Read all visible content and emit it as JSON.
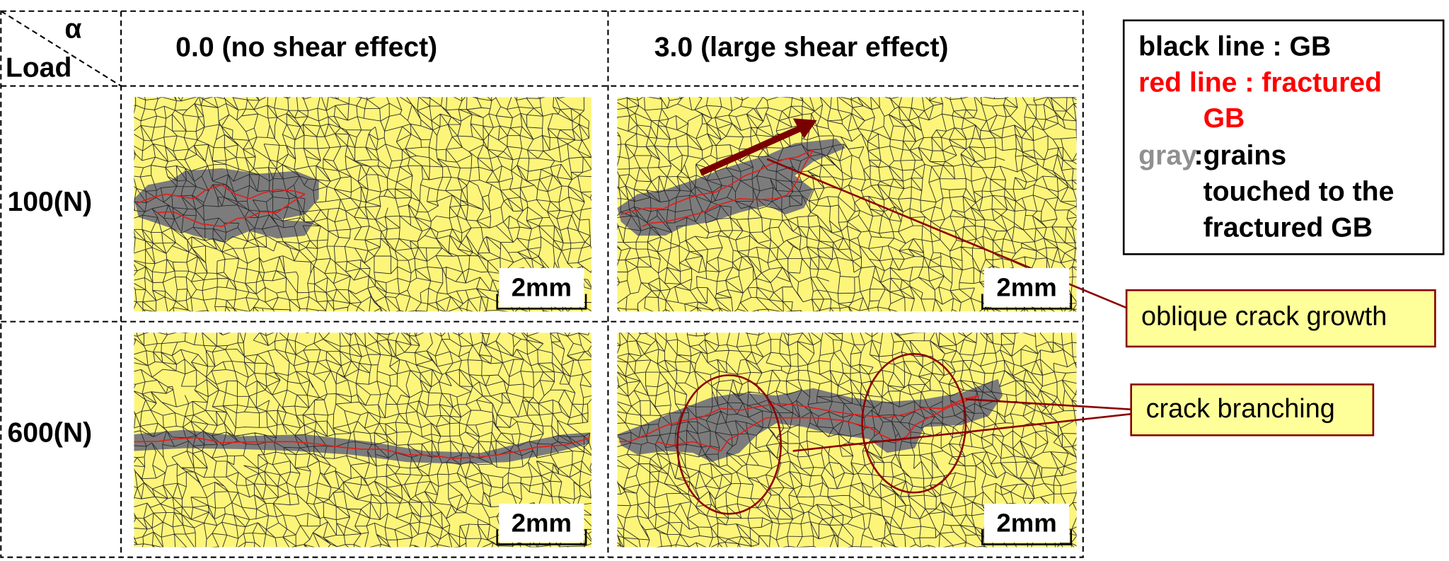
{
  "header": {
    "alpha": "α",
    "load": "Load",
    "columns": [
      "0.0 (no shear effect)",
      "3.0 (large shear effect)"
    ]
  },
  "rows": [
    "100(N)",
    "600(N)"
  ],
  "scale_bars": [
    "2mm",
    "2mm",
    "2mm",
    "2mm"
  ],
  "legend": {
    "black": "black line : GB",
    "red": [
      "red line : fractured",
      "GB"
    ],
    "gray_key": "gray",
    "separator": ":",
    "gray_text": [
      "grains",
      "touched to the",
      "fractured GB"
    ]
  },
  "callouts": [
    "oblique crack growth",
    "crack branching"
  ]
}
